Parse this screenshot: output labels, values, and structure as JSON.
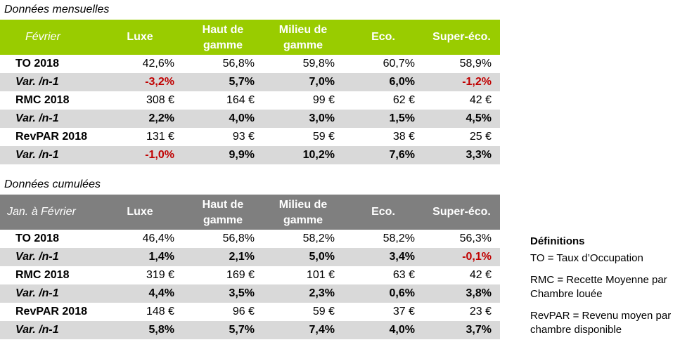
{
  "monthly": {
    "title": "Données mensuelles",
    "period": "Février",
    "columns": [
      "Luxe",
      "Haut de gamme",
      "Milieu de gamme",
      "Eco.",
      "Super-éco."
    ],
    "rows": [
      {
        "label": "TO 2018",
        "kind": "value",
        "values": [
          "42,6%",
          "56,8%",
          "59,8%",
          "60,7%",
          "58,9%"
        ]
      },
      {
        "label": "Var. /n-1",
        "kind": "var",
        "values": [
          "-3,2%",
          "5,7%",
          "7,0%",
          "6,0%",
          "-1,2%"
        ]
      },
      {
        "label": "RMC 2018",
        "kind": "value",
        "values": [
          "308 €",
          "164 €",
          "99 €",
          "62 €",
          "42 €"
        ]
      },
      {
        "label": "Var. /n-1",
        "kind": "var",
        "values": [
          "2,2%",
          "4,0%",
          "3,0%",
          "1,5%",
          "4,5%"
        ]
      },
      {
        "label": "RevPAR 2018",
        "kind": "value",
        "values": [
          "131 €",
          "93 €",
          "59 €",
          "38 €",
          "25 €"
        ]
      },
      {
        "label": "Var. /n-1",
        "kind": "var",
        "values": [
          "-1,0%",
          "9,9%",
          "10,2%",
          "7,6%",
          "3,3%"
        ]
      }
    ]
  },
  "cumulative": {
    "title": "Données cumulées",
    "period": "Jan. à Février",
    "columns": [
      "Luxe",
      "Haut de gamme",
      "Milieu de gamme",
      "Eco.",
      "Super-éco."
    ],
    "rows": [
      {
        "label": "TO 2018",
        "kind": "value",
        "values": [
          "46,4%",
          "56,8%",
          "58,2%",
          "58,2%",
          "56,3%"
        ]
      },
      {
        "label": "Var. /n-1",
        "kind": "var",
        "values": [
          "1,4%",
          "2,1%",
          "5,0%",
          "3,4%",
          "-0,1%"
        ]
      },
      {
        "label": "RMC 2018",
        "kind": "value",
        "values": [
          "319 €",
          "169 €",
          "101 €",
          "63 €",
          "42 €"
        ]
      },
      {
        "label": "Var. /n-1",
        "kind": "var",
        "values": [
          "4,4%",
          "3,5%",
          "2,3%",
          "0,6%",
          "3,8%"
        ]
      },
      {
        "label": "RevPAR 2018",
        "kind": "value",
        "values": [
          "148 €",
          "96 €",
          "59 €",
          "37 €",
          "23 €"
        ]
      },
      {
        "label": "Var. /n-1",
        "kind": "var",
        "values": [
          "5,8%",
          "5,7%",
          "7,4%",
          "4,0%",
          "3,7%"
        ]
      }
    ]
  },
  "definitions": {
    "title": "Définitions",
    "items": [
      "TO = Taux d’Occupation",
      "RMC = Recette Moyenne par Chambre louée",
      "RevPAR = Revenu moyen par chambre disponible"
    ]
  },
  "colors": {
    "monthly_header": "#99cc00",
    "cumulative_header": "#7f7f7f",
    "var_row": "#d9d9d9",
    "negative": "#c00000"
  }
}
